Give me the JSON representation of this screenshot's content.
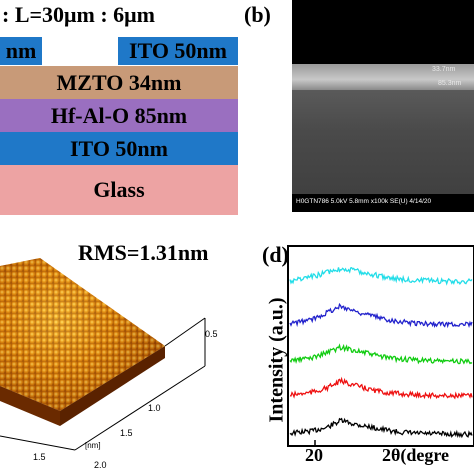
{
  "panel_a": {
    "title": ": L=30μm : 6μm",
    "layers": {
      "top_left": "nm",
      "top_right": "ITO 50nm",
      "mzto": "MZTO 34nm",
      "hfalo": "Hf-Al-O 85nm",
      "ito": "ITO 50nm",
      "glass": "Glass"
    },
    "colors": {
      "ito": "#1f78c8",
      "mzto": "#c89a78",
      "hfalo": "#9a6fc0",
      "glass": "#eda3a3"
    }
  },
  "panel_b": {
    "label": "(b)",
    "scale_top": "33.7nm",
    "scale_bottom": "85.3nm",
    "footer": "H0GTN786 5.0kV 5.8mm x100k SE(U) 4/14/20"
  },
  "panel_c": {
    "rms": "RMS=1.31nm",
    "axis_ticks_right": [
      "0.5",
      "1.0",
      "1.5"
    ],
    "axis_ticks_front": [
      "1.5",
      "2.0"
    ],
    "axis_unit": "[nm]"
  },
  "panel_d": {
    "label": "(d)",
    "ylabel": "Intensity (a.u.)",
    "xlabel": "2θ(degre",
    "xtick": "20",
    "chart_data": {
      "type": "line",
      "x": [
        15,
        18,
        20,
        22,
        24,
        26,
        28,
        30,
        32,
        34,
        36,
        38,
        40
      ],
      "series": [
        {
          "color": "#000000",
          "values": [
            0.1,
            0.18,
            0.3,
            0.55,
            0.42,
            0.32,
            0.22,
            0.14,
            0.1,
            0.08,
            0.07,
            0.06,
            0.06
          ]
        },
        {
          "color": "#ee1111",
          "values": [
            0.1,
            0.2,
            0.35,
            0.6,
            0.45,
            0.3,
            0.2,
            0.15,
            0.12,
            0.1,
            0.08,
            0.08,
            0.08
          ]
        },
        {
          "color": "#11cc11",
          "values": [
            0.12,
            0.22,
            0.4,
            0.6,
            0.48,
            0.36,
            0.24,
            0.18,
            0.14,
            0.12,
            0.1,
            0.1,
            0.1
          ]
        },
        {
          "color": "#2222cc",
          "values": [
            0.15,
            0.3,
            0.55,
            0.78,
            0.6,
            0.45,
            0.32,
            0.24,
            0.18,
            0.15,
            0.14,
            0.13,
            0.13
          ]
        },
        {
          "color": "#22dde8",
          "values": [
            0.25,
            0.4,
            0.55,
            0.7,
            0.62,
            0.5,
            0.4,
            0.32,
            0.28,
            0.26,
            0.24,
            0.24,
            0.24
          ]
        }
      ]
    }
  }
}
